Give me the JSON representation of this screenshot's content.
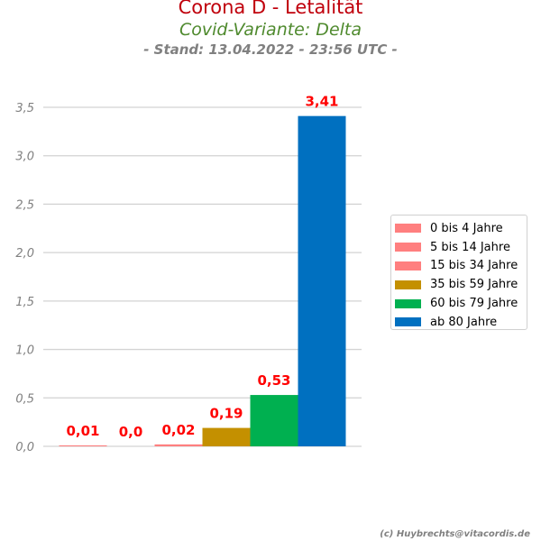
{
  "header": {
    "title": "Corona D - Letalität",
    "subtitle": "Covid-Variante: Delta",
    "stand": "- Stand: 13.04.2022 - 23:56 UTC -"
  },
  "footer": "(c) Huybrechts@vitacordis.de",
  "chart_data": {
    "type": "bar",
    "categories": [
      "0 bis 4 Jahre",
      "5 bis 14 Jahre",
      "15 bis 34 Jahre",
      "35 bis 59 Jahre",
      "60 bis 79 Jahre",
      "ab 80 Jahre"
    ],
    "values": [
      0.01,
      0.0,
      0.02,
      0.19,
      0.53,
      3.41
    ],
    "value_labels": [
      "0,01",
      "0,0",
      "0,02",
      "0,19",
      "0,53",
      "3,41"
    ],
    "colors": [
      "#ff7f7f",
      "#ff7f7f",
      "#ff7f7f",
      "#c49000",
      "#00b050",
      "#0070c0"
    ],
    "yticks": [
      0,
      0.5,
      1.0,
      1.5,
      2.0,
      2.5,
      3.0,
      3.5
    ],
    "ytick_labels": [
      "0,0",
      "0,5",
      "1,0",
      "1,5",
      "2,0",
      "2,5",
      "3,0",
      "3,5"
    ],
    "ylim": [
      0,
      3.5
    ],
    "grid": true,
    "legend_position": "right",
    "label_color": "#ff0000"
  }
}
